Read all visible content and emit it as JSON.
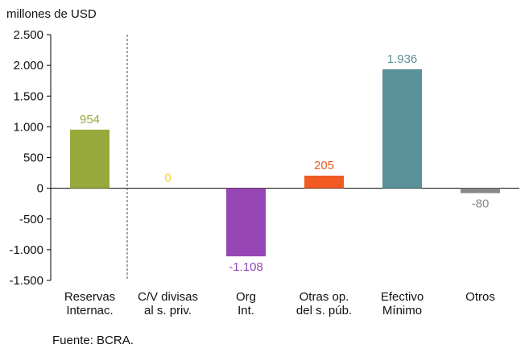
{
  "chart_data": {
    "type": "bar",
    "ylabel": "millones de USD",
    "ylim": [
      -1500,
      2500
    ],
    "yticks": [
      2500,
      2000,
      1500,
      1000,
      500,
      0,
      -500,
      -1000,
      -1500
    ],
    "ytick_labels": [
      "2.500",
      "2.000",
      "1.500",
      "1.000",
      "500",
      "0",
      "-500",
      "-1.000",
      "-1.500"
    ],
    "categories": [
      [
        "Reservas",
        "Internac."
      ],
      [
        "C/V divisas",
        "al s. priv."
      ],
      [
        "Org",
        "Int."
      ],
      [
        "Otras op.",
        "del s. púb."
      ],
      [
        "Efectivo",
        "Mínimo"
      ],
      [
        "Otros"
      ]
    ],
    "values": [
      954,
      0,
      -1108,
      205,
      1936,
      -80
    ],
    "value_labels": [
      "954",
      "0",
      "-1.108",
      "205",
      "1.936",
      "-80"
    ],
    "colors": [
      "#97a93b",
      "#f2d41c",
      "#9747b5",
      "#f15a22",
      "#5a9199",
      "#8a8a8a"
    ],
    "separator_after_category": 0,
    "separator_color": "#3a4f7a",
    "source": "Fuente: BCRA."
  }
}
